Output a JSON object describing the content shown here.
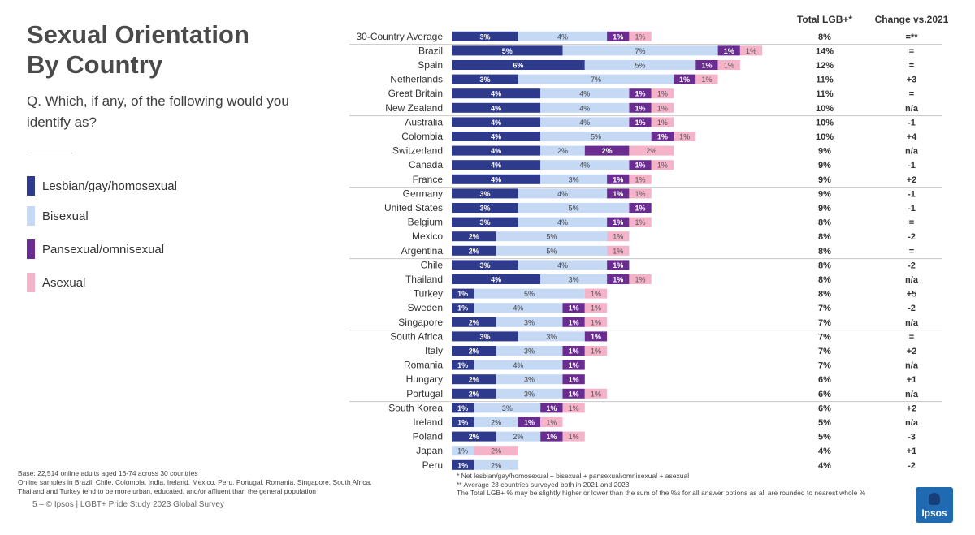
{
  "title": "Sexual Orientation By Country",
  "question": "Q. Which, if any, of the following would you identify as?",
  "legend": [
    {
      "label": "Lesbian/gay/homosexual",
      "color": "#2e3a8c"
    },
    {
      "label": "Bisexual",
      "color": "#c5d9f5"
    },
    {
      "label": "Pansexual/omnisexual",
      "color": "#6a2c91"
    },
    {
      "label": "Asexual",
      "color": "#f5b3c9"
    }
  ],
  "base_note": "Base: 22,514 online adults aged 16-74 across 30 countries\nOnline samples in Brazil, Chile, Colombia, India, Ireland, Mexico, Peru, Portugal, Romania, Singapore, South Africa, Thailand and Turkey tend to be more urban, educated, and/or affluent than the general population",
  "footer": "5 –  © Ipsos | LGBT+ Pride Study 2023 Global Survey",
  "footnotes": "* Net lesbian/gay/homosexual + bisexual + pansexual/omnisexual + asexual\n** Average 23 countries surveyed both in 2021 and 2023\nThe Total LGB+ % may be slightly higher or lower than the sum of the %s for all answer options as all are rounded to nearest whole %",
  "logo_text": "Ipsos",
  "chart_data": {
    "type": "bar",
    "orientation": "horizontal",
    "stacked": true,
    "columns": {
      "total": "Total LGB+*",
      "change": "Change vs.2021"
    },
    "categories": [
      "30-Country Average",
      "Brazil",
      "Spain",
      "Netherlands",
      "Great Britain",
      "New Zealand",
      "Australia",
      "Colombia",
      "Switzerland",
      "Canada",
      "France",
      "Germany",
      "United States",
      "Belgium",
      "Mexico",
      "Argentina",
      "Chile",
      "Thailand",
      "Turkey",
      "Sweden",
      "Singapore",
      "South Africa",
      "Italy",
      "Romania",
      "Hungary",
      "Portugal",
      "South Korea",
      "Ireland",
      "Poland",
      "Japan",
      "Peru"
    ],
    "series": [
      {
        "name": "Lesbian/gay/homosexual",
        "color": "#2e3a8c",
        "values": [
          3,
          5,
          6,
          3,
          4,
          4,
          4,
          4,
          4,
          4,
          4,
          3,
          3,
          3,
          2,
          2,
          3,
          4,
          1,
          1,
          2,
          3,
          2,
          1,
          2,
          2,
          1,
          1,
          2,
          0,
          1
        ]
      },
      {
        "name": "Bisexual",
        "color": "#c5d9f5",
        "values": [
          4,
          7,
          5,
          7,
          4,
          4,
          4,
          5,
          2,
          4,
          3,
          4,
          5,
          4,
          5,
          5,
          4,
          3,
          5,
          4,
          3,
          3,
          3,
          4,
          3,
          3,
          3,
          2,
          2,
          1,
          2
        ]
      },
      {
        "name": "Pansexual/omnisexual",
        "color": "#6a2c91",
        "values": [
          1,
          1,
          1,
          1,
          1,
          1,
          1,
          1,
          2,
          1,
          1,
          1,
          1,
          1,
          0,
          0,
          1,
          1,
          0,
          1,
          1,
          1,
          1,
          1,
          1,
          1,
          1,
          1,
          1,
          0,
          0
        ]
      },
      {
        "name": "Asexual",
        "color": "#f5b3c9",
        "values": [
          1,
          1,
          1,
          1,
          1,
          1,
          1,
          1,
          2,
          1,
          1,
          1,
          0,
          1,
          1,
          1,
          0,
          1,
          1,
          1,
          1,
          0,
          1,
          0,
          0,
          1,
          1,
          1,
          1,
          2,
          0
        ]
      }
    ],
    "total": [
      "8%",
      "14%",
      "12%",
      "11%",
      "11%",
      "10%",
      "10%",
      "10%",
      "9%",
      "9%",
      "9%",
      "9%",
      "9%",
      "8%",
      "8%",
      "8%",
      "8%",
      "8%",
      "8%",
      "7%",
      "7%",
      "7%",
      "7%",
      "7%",
      "6%",
      "6%",
      "6%",
      "5%",
      "5%",
      "4%",
      "4%"
    ],
    "change": [
      "=**",
      "=",
      "=",
      "+3",
      "=",
      "n/a",
      "-1",
      "+4",
      "n/a",
      "-1",
      "+2",
      "-1",
      "-1",
      "=",
      "-2",
      "=",
      "-2",
      "n/a",
      "+5",
      "-2",
      "n/a",
      "=",
      "+2",
      "n/a",
      "+1",
      "n/a",
      "+2",
      "n/a",
      "-3",
      "+1",
      "-2"
    ],
    "group_separators_after": [
      0,
      5,
      10,
      15,
      20,
      25
    ]
  }
}
